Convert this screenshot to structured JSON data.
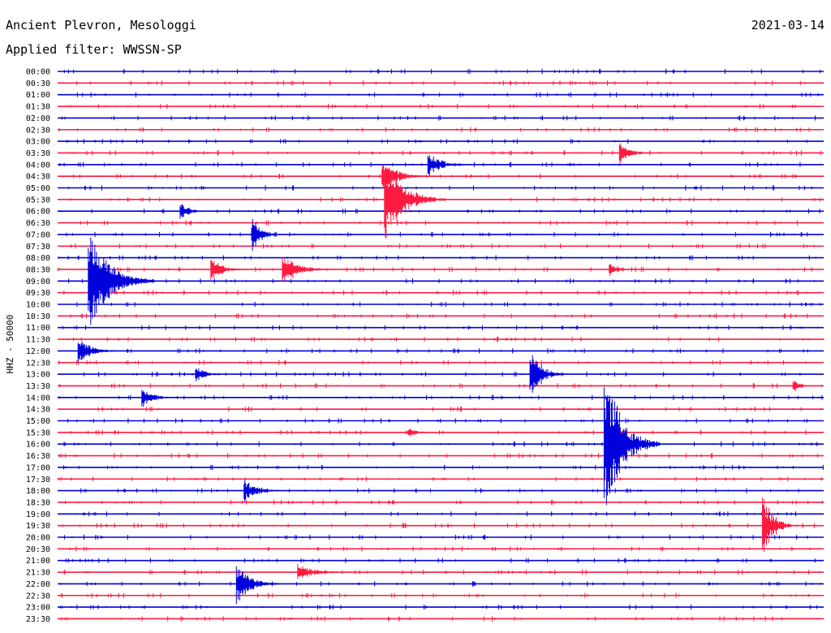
{
  "header": {
    "station": "Ancient Plevron, Mesologgi",
    "date": "2021-03-14",
    "filter": "Applied filter: WWSSN-SP"
  },
  "colors": {
    "blue": "#0000dd",
    "red": "#ff1a40",
    "text": "#000000",
    "background": "#ffffff"
  },
  "chart_data": {
    "type": "line",
    "title": "Ancient Plevron, Mesologgi",
    "ylabel": "HHZ - 50000",
    "row_labels": [
      "00:00",
      "00:30",
      "01:00",
      "01:30",
      "02:00",
      "02:30",
      "03:00",
      "03:30",
      "04:00",
      "04:30",
      "05:00",
      "05:30",
      "06:00",
      "06:30",
      "07:00",
      "07:30",
      "08:00",
      "08:30",
      "09:00",
      "09:30",
      "10:00",
      "10:30",
      "11:00",
      "11:30",
      "12:00",
      "12:30",
      "13:00",
      "13:30",
      "14:00",
      "14:30",
      "15:00",
      "15:30",
      "16:00",
      "16:30",
      "17:00",
      "17:30",
      "18:00",
      "18:30",
      "19:00",
      "19:30",
      "20:00",
      "20:30",
      "21:00",
      "21:30",
      "22:00",
      "22:30",
      "23:00",
      "23:30"
    ],
    "row_colors": [
      "blue",
      "red"
    ],
    "x_minutes_per_row": 30,
    "events": [
      {
        "row": "03:30",
        "minute": 22.0,
        "amplitude": 14,
        "duration": 1.5
      },
      {
        "row": "04:00",
        "minute": 14.5,
        "amplitude": 18,
        "duration": 1.8
      },
      {
        "row": "04:30",
        "minute": 12.7,
        "amplitude": 22,
        "duration": 2.0
      },
      {
        "row": "05:30",
        "minute": 12.8,
        "amplitude": 60,
        "duration": 2.4
      },
      {
        "row": "06:00",
        "minute": 4.8,
        "amplitude": 12,
        "duration": 1.4
      },
      {
        "row": "07:00",
        "minute": 7.6,
        "amplitude": 26,
        "duration": 1.2
      },
      {
        "row": "08:30",
        "minute": 8.8,
        "amplitude": 24,
        "duration": 2.0
      },
      {
        "row": "08:30",
        "minute": 6.0,
        "amplitude": 16,
        "duration": 1.6
      },
      {
        "row": "08:30",
        "minute": 21.6,
        "amplitude": 10,
        "duration": 1.2
      },
      {
        "row": "09:00",
        "minute": 1.2,
        "amplitude": 80,
        "duration": 2.6
      },
      {
        "row": "12:00",
        "minute": 0.8,
        "amplitude": 18,
        "duration": 1.8
      },
      {
        "row": "13:00",
        "minute": 5.4,
        "amplitude": 12,
        "duration": 1.2
      },
      {
        "row": "13:00",
        "minute": 18.5,
        "amplitude": 40,
        "duration": 1.4
      },
      {
        "row": "13:30",
        "minute": 28.8,
        "amplitude": 12,
        "duration": 0.8
      },
      {
        "row": "14:00",
        "minute": 3.3,
        "amplitude": 14,
        "duration": 1.4
      },
      {
        "row": "15:30",
        "minute": 13.7,
        "amplitude": 8,
        "duration": 1.2
      },
      {
        "row": "16:00",
        "minute": 21.4,
        "amplitude": 110,
        "duration": 2.2
      },
      {
        "row": "18:00",
        "minute": 7.3,
        "amplitude": 18,
        "duration": 1.6
      },
      {
        "row": "19:30",
        "minute": 27.6,
        "amplitude": 45,
        "duration": 1.4
      },
      {
        "row": "21:30",
        "minute": 9.4,
        "amplitude": 12,
        "duration": 2.2
      },
      {
        "row": "22:00",
        "minute": 7.0,
        "amplitude": 30,
        "duration": 1.8
      }
    ]
  }
}
